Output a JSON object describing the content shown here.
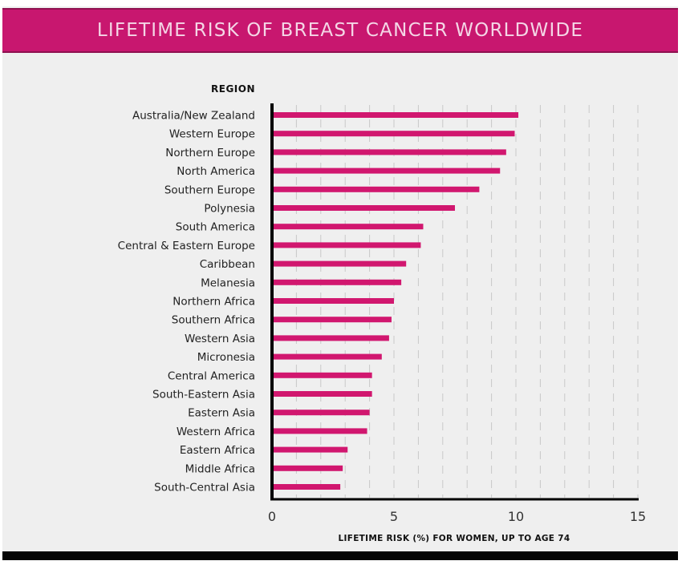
{
  "chart_data": {
    "type": "bar",
    "orientation": "horizontal",
    "title": "LIFETIME RISK OF BREAST CANCER WORLDWIDE",
    "category_axis_title": "REGION",
    "xlabel": "LIFETIME RISK (%) FOR WOMEN, UP TO AGE 74",
    "ylabel": "REGION",
    "xlim": [
      0,
      15
    ],
    "xticks": [
      0,
      5,
      10,
      15
    ],
    "minor_gridlines_every": 1,
    "grid": true,
    "bar_color": "#d1176f",
    "categories": [
      "Australia/New Zealand",
      "Western Europe",
      "Northern Europe",
      "North America",
      "Southern Europe",
      "Polynesia",
      "South America",
      "Central & Eastern Europe",
      "Caribbean",
      "Melanesia",
      "Northern Africa",
      "Southern Africa",
      "Western Asia",
      "Micronesia",
      "Central America",
      "South-Eastern Asia",
      "Eastern Asia",
      "Western Africa",
      "Eastern Africa",
      "Middle Africa",
      "South-Central Asia"
    ],
    "values": [
      10.1,
      9.95,
      9.6,
      9.35,
      8.5,
      7.5,
      6.2,
      6.1,
      5.5,
      5.3,
      5.0,
      4.9,
      4.8,
      4.5,
      4.1,
      4.1,
      4.0,
      3.9,
      3.1,
      2.9,
      2.8
    ]
  }
}
